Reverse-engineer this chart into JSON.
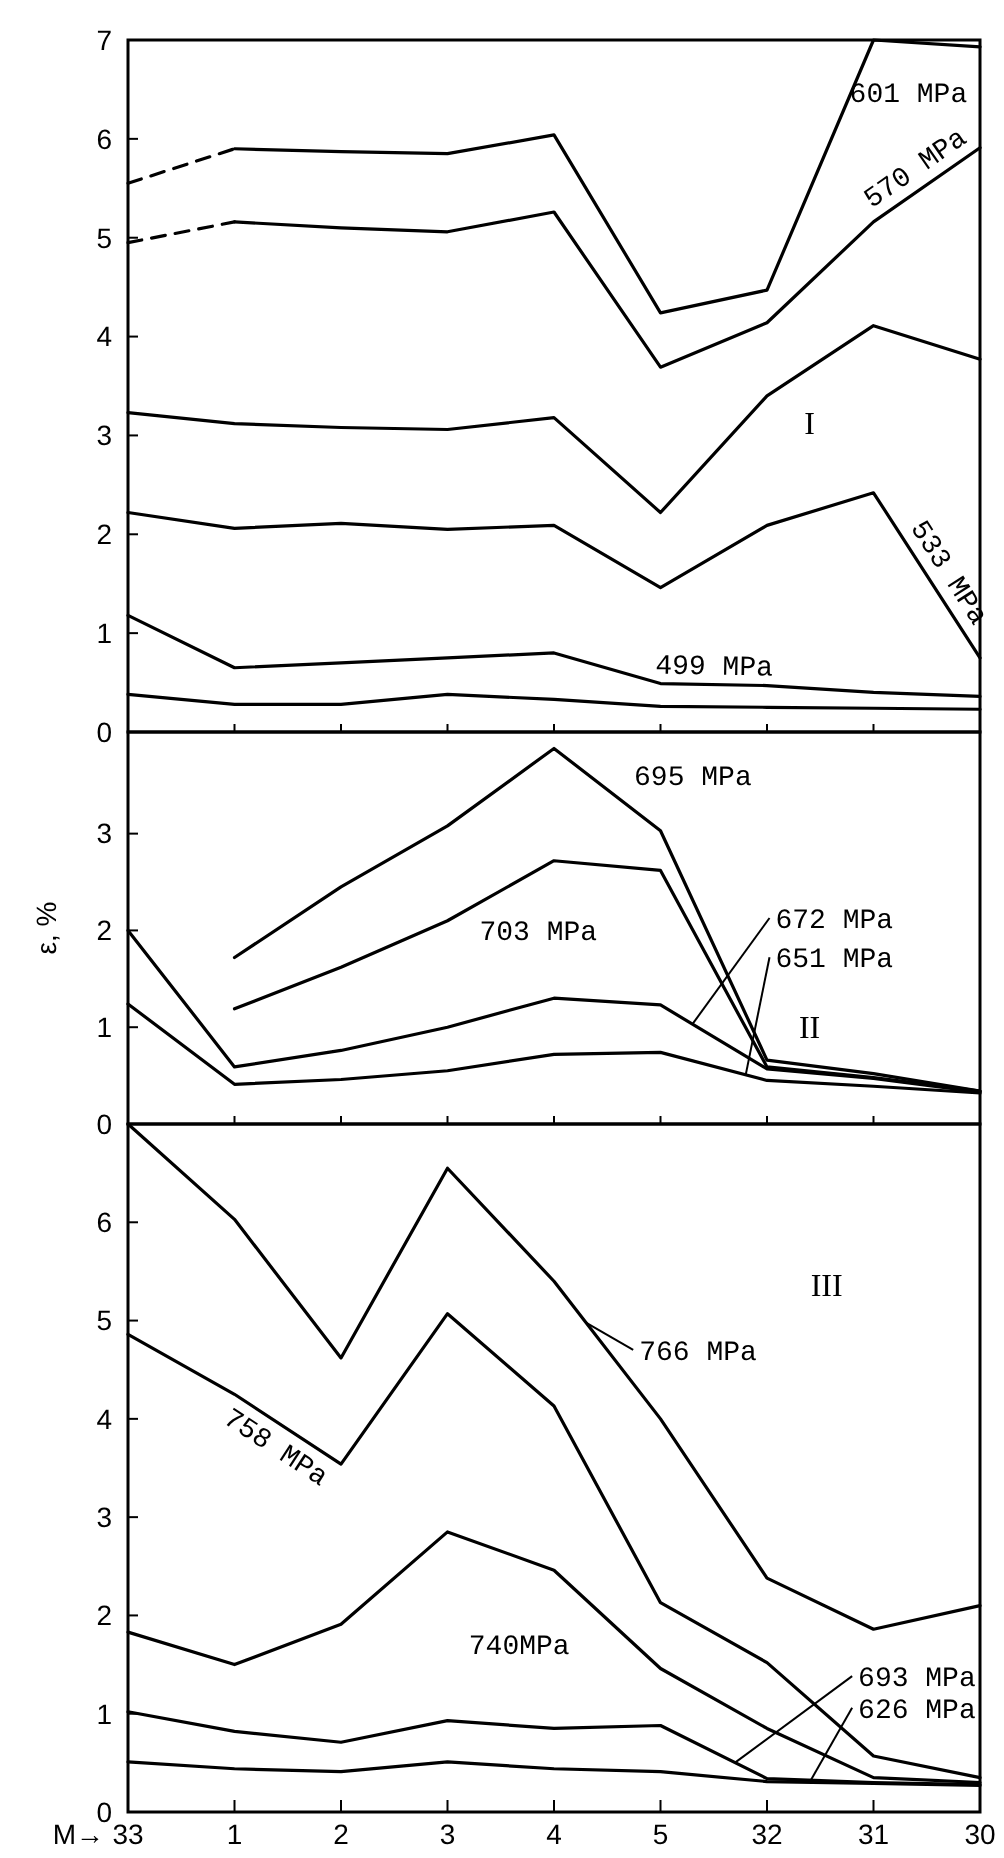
{
  "chart_data": [
    {
      "type": "line",
      "categories": [
        "33",
        "1",
        "2",
        "3",
        "4",
        "5",
        "32",
        "31",
        "30"
      ],
      "ylim": [
        0,
        7
      ],
      "yticks": [
        0,
        1,
        2,
        3,
        4,
        5,
        6,
        7
      ],
      "tick_labels": "y",
      "annotations": [
        "I"
      ],
      "series": [
        {
          "name": "601 MPa",
          "color": "#000000",
          "values": [
            null,
            5.9,
            5.87,
            5.85,
            6.04,
            4.24,
            4.47,
            7.0,
            6.93
          ]
        },
        {
          "color": "#000000",
          "line_style": "dashed",
          "values": [
            5.55,
            5.9,
            null,
            null,
            null,
            null,
            null,
            null,
            null
          ]
        },
        {
          "name": "570 MPa",
          "color": "#000000",
          "values": [
            null,
            5.16,
            5.1,
            5.06,
            5.26,
            3.69,
            4.14,
            5.16,
            5.91
          ]
        },
        {
          "color": "#000000",
          "line_style": "dashed",
          "values": [
            4.95,
            5.16,
            null,
            null,
            null,
            null,
            null,
            null,
            null
          ]
        },
        {
          "color": "#000000",
          "values": [
            3.23,
            3.12,
            3.08,
            3.06,
            3.18,
            2.22,
            3.4,
            4.11,
            3.77
          ]
        },
        {
          "name": "533 MPa",
          "color": "#000000",
          "values": [
            2.22,
            2.06,
            2.11,
            2.05,
            2.09,
            1.46,
            2.09,
            2.42,
            0.75
          ]
        },
        {
          "name": "499 MPa",
          "color": "#000000",
          "values": [
            1.18,
            0.65,
            0.7,
            0.75,
            0.8,
            0.49,
            0.47,
            0.4,
            0.36
          ]
        },
        {
          "color": "#000000",
          "values": [
            0.38,
            0.28,
            0.28,
            0.38,
            0.33,
            0.26,
            0.25,
            0.24,
            0.23
          ]
        }
      ]
    },
    {
      "type": "line",
      "categories": [
        "33",
        "1",
        "2",
        "3",
        "4",
        "5",
        "32",
        "31",
        "30"
      ],
      "ylim": [
        0,
        4.05
      ],
      "yticks": [
        0,
        1,
        2,
        3
      ],
      "ylabel": "ε, %",
      "tick_labels": "y",
      "annotations": [
        "II"
      ],
      "series": [
        {
          "name": "695 MPa",
          "color": "#000000",
          "values": [
            null,
            1.72,
            2.45,
            3.08,
            3.88,
            3.03,
            0.66,
            0.52,
            0.34
          ]
        },
        {
          "name": "703 MPa",
          "color": "#000000",
          "values": [
            null,
            1.19,
            1.62,
            2.1,
            2.72,
            2.62,
            0.59,
            0.48,
            0.34
          ]
        },
        {
          "name": "672 MPa",
          "color": "#000000",
          "values": [
            2.0,
            0.59,
            0.76,
            1.0,
            1.3,
            1.23,
            0.57,
            0.47,
            0.33
          ]
        },
        {
          "name": "651 MPa",
          "color": "#000000",
          "values": [
            1.24,
            0.41,
            0.46,
            0.55,
            0.72,
            0.74,
            0.45,
            0.39,
            0.32
          ]
        }
      ]
    },
    {
      "type": "line",
      "categories": [
        "33",
        "1",
        "2",
        "3",
        "4",
        "5",
        "32",
        "31",
        "30"
      ],
      "ylim": [
        0,
        7
      ],
      "yticks": [
        0,
        1,
        2,
        3,
        4,
        5,
        6
      ],
      "xlabel": "M→",
      "annotations": [
        "III"
      ],
      "series": [
        {
          "name": "766 MPa",
          "color": "#000000",
          "values": [
            7.0,
            6.03,
            4.62,
            6.55,
            5.4,
            4.0,
            2.38,
            1.86,
            2.1
          ]
        },
        {
          "name": "758 MPa",
          "color": "#000000",
          "values": [
            4.86,
            4.25,
            3.54,
            5.07,
            4.13,
            2.13,
            1.52,
            0.57,
            0.35
          ]
        },
        {
          "name": "740MPa",
          "color": "#000000",
          "values": [
            1.83,
            1.5,
            1.91,
            2.85,
            2.46,
            1.46,
            0.85,
            0.35,
            0.3
          ]
        },
        {
          "name": "693 MPa",
          "color": "#000000",
          "values": [
            1.02,
            0.82,
            0.71,
            0.93,
            0.85,
            0.88,
            0.34,
            0.3,
            0.28
          ]
        },
        {
          "name": "626 MPa",
          "color": "#000000",
          "values": [
            0.51,
            0.44,
            0.41,
            0.51,
            0.44,
            0.41,
            0.31,
            0.29,
            0.27
          ]
        }
      ]
    }
  ]
}
